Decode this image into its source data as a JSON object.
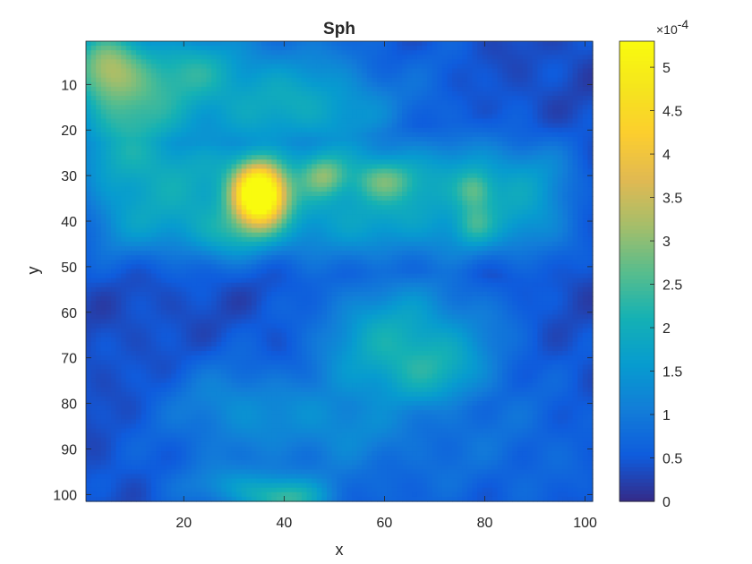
{
  "chart_data": {
    "type": "heatmap",
    "title": "Sph",
    "xlabel": "x",
    "ylabel": "y",
    "xlim": [
      1,
      101
    ],
    "ylim": [
      1,
      101
    ],
    "y_direction": "reverse",
    "x_ticks": [
      "20",
      "40",
      "60",
      "80",
      "100"
    ],
    "x_tick_values": [
      20,
      40,
      60,
      80,
      100
    ],
    "y_ticks": [
      "10",
      "20",
      "30",
      "40",
      "50",
      "60",
      "70",
      "80",
      "90",
      "100"
    ],
    "y_tick_values": [
      10,
      20,
      30,
      40,
      50,
      60,
      70,
      80,
      90,
      100
    ],
    "colormap": "parula",
    "colorbar": {
      "range": [
        0,
        5.3
      ],
      "scale_label_base": "×10",
      "scale_label_exp": "-4",
      "ticks": [
        "0",
        "0.5",
        "1",
        "1.5",
        "2",
        "2.5",
        "3",
        "3.5",
        "4",
        "4.5",
        "5"
      ],
      "tick_values": [
        0,
        0.5,
        1,
        1.5,
        2,
        2.5,
        3,
        3.5,
        4,
        4.5,
        5
      ]
    },
    "grid": false,
    "features": [
      {
        "x": 35,
        "y": 34,
        "peak": 5.0,
        "sx": 3.5,
        "sy": 4.5
      },
      {
        "x": 4,
        "y": 6,
        "peak": 1.8,
        "sx": 5,
        "sy": 6
      },
      {
        "x": 10,
        "y": 10,
        "peak": 1.0,
        "sx": 7,
        "sy": 8
      },
      {
        "x": 8,
        "y": 22,
        "peak": 0.8,
        "sx": 9,
        "sy": 6
      },
      {
        "x": 22,
        "y": 6,
        "peak": 0.7,
        "sx": 6,
        "sy": 5
      },
      {
        "x": 33,
        "y": 12,
        "peak": 0.6,
        "sx": 12,
        "sy": 8
      },
      {
        "x": 50,
        "y": 16,
        "peak": 0.6,
        "sx": 10,
        "sy": 6
      },
      {
        "x": 48,
        "y": 30,
        "peak": 1.2,
        "sx": 3,
        "sy": 3
      },
      {
        "x": 60,
        "y": 31,
        "peak": 1.1,
        "sx": 4,
        "sy": 3
      },
      {
        "x": 78,
        "y": 33,
        "peak": 1.0,
        "sx": 2.5,
        "sy": 3
      },
      {
        "x": 78,
        "y": 41,
        "peak": 0.7,
        "sx": 2.5,
        "sy": 3
      },
      {
        "x": 30,
        "y": 43,
        "peak": 0.6,
        "sx": 6,
        "sy": 4
      },
      {
        "x": 62,
        "y": 66,
        "peak": 0.9,
        "sx": 10,
        "sy": 9
      },
      {
        "x": 70,
        "y": 73,
        "peak": 0.6,
        "sx": 7,
        "sy": 5
      },
      {
        "x": 40,
        "y": 101,
        "peak": 1.6,
        "sx": 6,
        "sy": 3
      },
      {
        "x": 30,
        "y": 98,
        "peak": 0.6,
        "sx": 8,
        "sy": 3
      },
      {
        "x": 30,
        "y": 80,
        "peak": 0.6,
        "sx": 8,
        "sy": 6
      },
      {
        "x": 50,
        "y": 84,
        "peak": 0.5,
        "sx": 8,
        "sy": 6
      }
    ],
    "bands": [
      {
        "x0": 2,
        "x1": 96,
        "y0": 24,
        "y1": 46,
        "level": 1.9,
        "edge": 3
      },
      {
        "x0": 48,
        "x1": 85,
        "y0": 56,
        "y1": 82,
        "level": 1.25,
        "edge": 5
      },
      {
        "x0": 14,
        "x1": 100,
        "y0": 76,
        "y1": 101,
        "level": 0.95,
        "edge": 6
      },
      {
        "x0": 1,
        "x1": 60,
        "y0": 1,
        "y1": 28,
        "level": 1.25,
        "edge": 6
      },
      {
        "x0": 60,
        "x1": 75,
        "y0": 1,
        "y1": 22,
        "level": 0.9,
        "edge": 5
      }
    ]
  }
}
